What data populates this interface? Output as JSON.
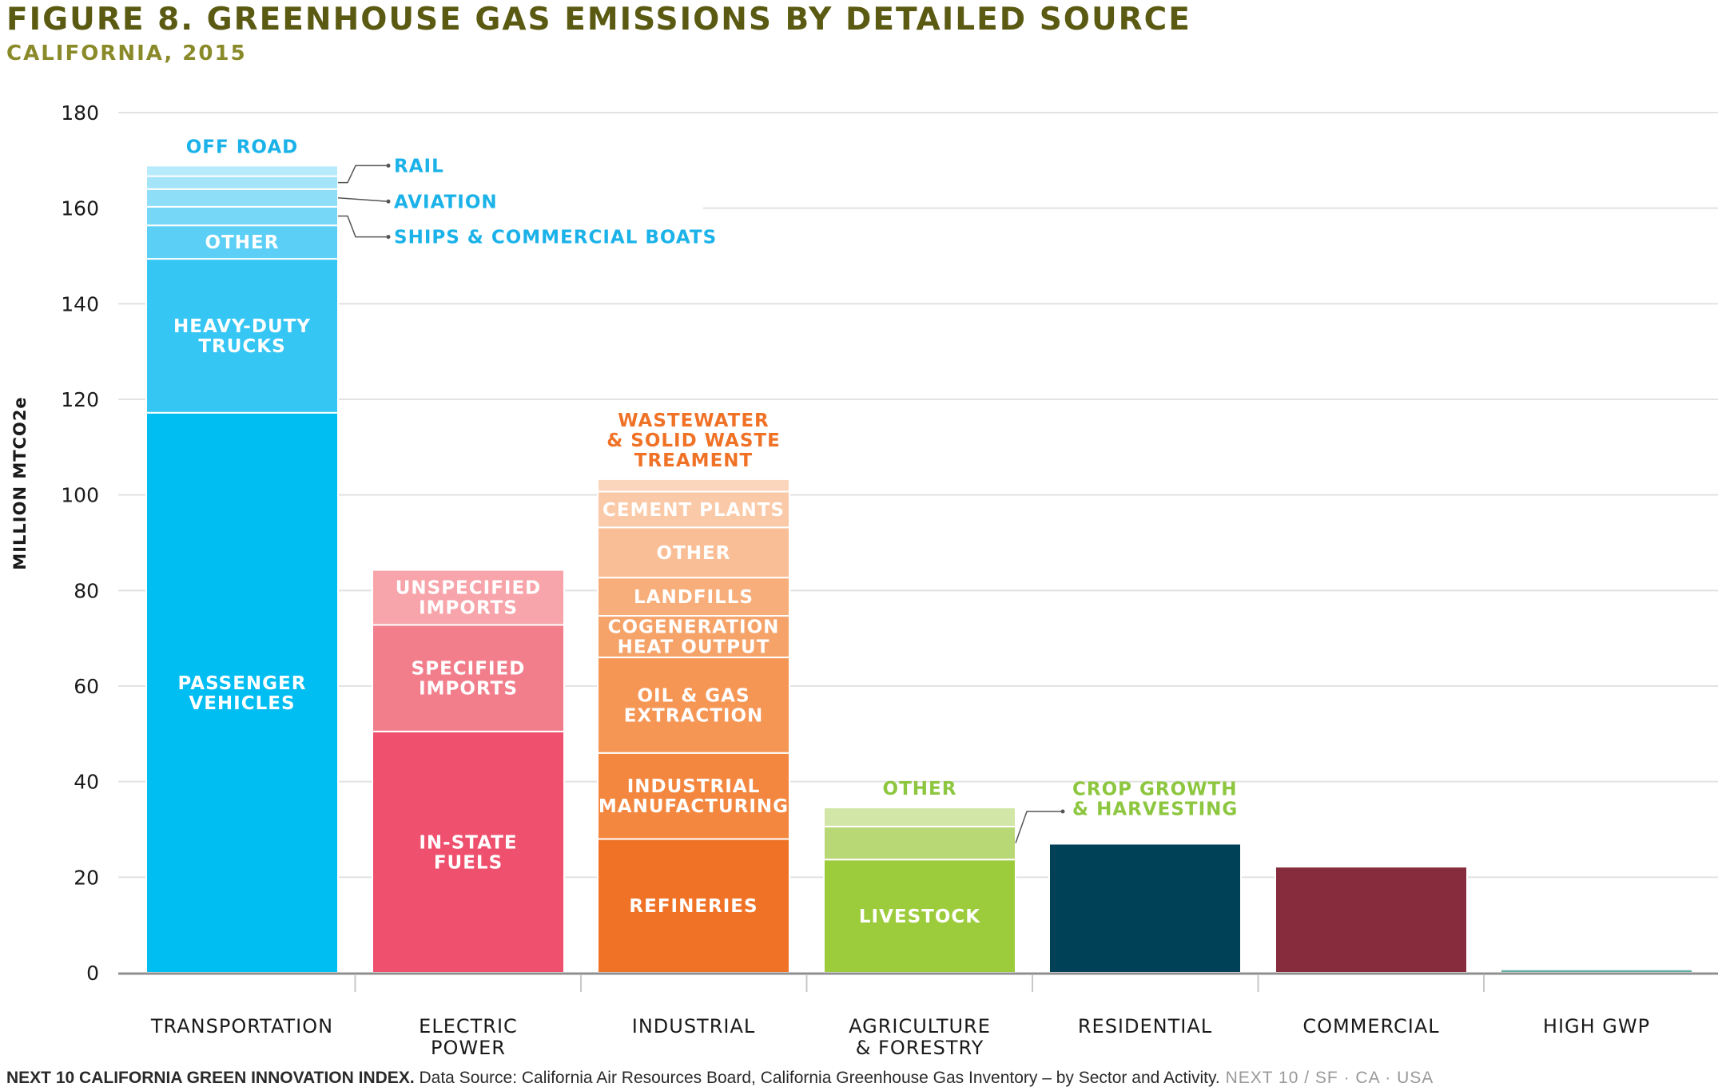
{
  "title": "FIGURE 8. GREENHOUSE GAS EMISSIONS BY DETAILED SOURCE",
  "subtitle": "CALIFORNIA, 2015",
  "footer": {
    "brand": "NEXT 10 CALIFORNIA GREEN INNOVATION INDEX.",
    "source": " Data Source: California Air Resources Board, California Greenhouse Gas Inventory – by Sector and Activity.",
    "tag": " NEXT 10  /  SF · CA · USA"
  },
  "colors": {
    "axis": "#8f8f8f",
    "grid": "#e2e2e2",
    "transportation_label": "#1ab2e8",
    "industrial_label": "#f07227",
    "agriculture_label": "#8dc63f"
  },
  "chart_data": {
    "type": "bar",
    "stacked": true,
    "ylabel": "MILLION MTCO2e",
    "ylim": [
      0,
      180
    ],
    "yticks": [
      0,
      20,
      40,
      60,
      80,
      100,
      120,
      140,
      160,
      180
    ],
    "grid": true,
    "categories": [
      {
        "name": "TRANSPORTATION",
        "segments": [
          {
            "label": "PASSENGER VEHICLES",
            "value": 117.2,
            "color": "#00bdf2",
            "label_pos": "inside"
          },
          {
            "label": "HEAVY-DUTY TRUCKS",
            "value": 32.2,
            "color": "#35c6f4",
            "label_pos": "inside"
          },
          {
            "label": "OTHER",
            "value": 7.0,
            "color": "#5bcff6",
            "label_pos": "inside"
          },
          {
            "label": "SHIPS & COMMERCIAL BOATS",
            "value": 3.9,
            "color": "#77d7f7",
            "label_pos": "callout"
          },
          {
            "label": "AVIATION",
            "value": 3.7,
            "color": "#8fdef8",
            "label_pos": "callout"
          },
          {
            "label": "RAIL",
            "value": 2.7,
            "color": "#a4e4f9",
            "label_pos": "callout"
          },
          {
            "label": "OFF ROAD",
            "value": 2.2,
            "color": "#b7eafa",
            "label_pos": "top"
          }
        ]
      },
      {
        "name": "ELECTRIC POWER",
        "segments": [
          {
            "label": "IN-STATE FUELS",
            "value": 50.5,
            "color": "#ee506d",
            "label_pos": "inside"
          },
          {
            "label": "SPECIFIED IMPORTS",
            "value": 22.3,
            "color": "#f27e8c",
            "label_pos": "inside"
          },
          {
            "label": "UNSPECIFIED IMPORTS",
            "value": 11.5,
            "color": "#f7a4aa",
            "label_pos": "inside"
          }
        ]
      },
      {
        "name": "INDUSTRIAL",
        "segments": [
          {
            "label": "REFINERIES",
            "value": 28.0,
            "color": "#f07227",
            "label_pos": "inside"
          },
          {
            "label": "INDUSTRIAL MANUFACTURING",
            "value": 18.0,
            "color": "#f3873f",
            "label_pos": "inside"
          },
          {
            "label": "OIL & GAS EXTRACTION",
            "value": 20.0,
            "color": "#f59654",
            "label_pos": "inside"
          },
          {
            "label": "COGENERATION HEAT OUTPUT",
            "value": 8.7,
            "color": "#f6a36a",
            "label_pos": "inside"
          },
          {
            "label": "LANDFILLS",
            "value": 8.0,
            "color": "#f7ae7b",
            "label_pos": "inside"
          },
          {
            "label": "OTHER",
            "value": 10.5,
            "color": "#f9be95",
            "label_pos": "inside"
          },
          {
            "label": "CEMENT PLANTS",
            "value": 7.5,
            "color": "#facaa8",
            "label_pos": "inside"
          },
          {
            "label": "WASTEWATER & SOLID WASTE TREAMENT",
            "value": 2.6,
            "color": "#fbd6bc",
            "label_pos": "top"
          }
        ]
      },
      {
        "name": "AGRICULTURE & FORESTRY",
        "segments": [
          {
            "label": "LIVESTOCK",
            "value": 23.7,
            "color": "#9ccb3b",
            "label_pos": "inside"
          },
          {
            "label": "CROP GROWTH & HARVESTING",
            "value": 6.9,
            "color": "#b8d775",
            "label_pos": "callout"
          },
          {
            "label": "OTHER",
            "value": 4.0,
            "color": "#d2e6a8",
            "label_pos": "top"
          }
        ]
      },
      {
        "name": "RESIDENTIAL",
        "segments": [
          {
            "label": "",
            "value": 27.0,
            "color": "#004158",
            "label_pos": "none"
          }
        ]
      },
      {
        "name": "COMMERCIAL",
        "segments": [
          {
            "label": "",
            "value": 22.2,
            "color": "#862c3c",
            "label_pos": "none"
          }
        ]
      },
      {
        "name": "HIGH GWP",
        "segments": [
          {
            "label": "",
            "value": 0.7,
            "color": "#5fae9f",
            "label_pos": "none"
          }
        ]
      }
    ]
  }
}
